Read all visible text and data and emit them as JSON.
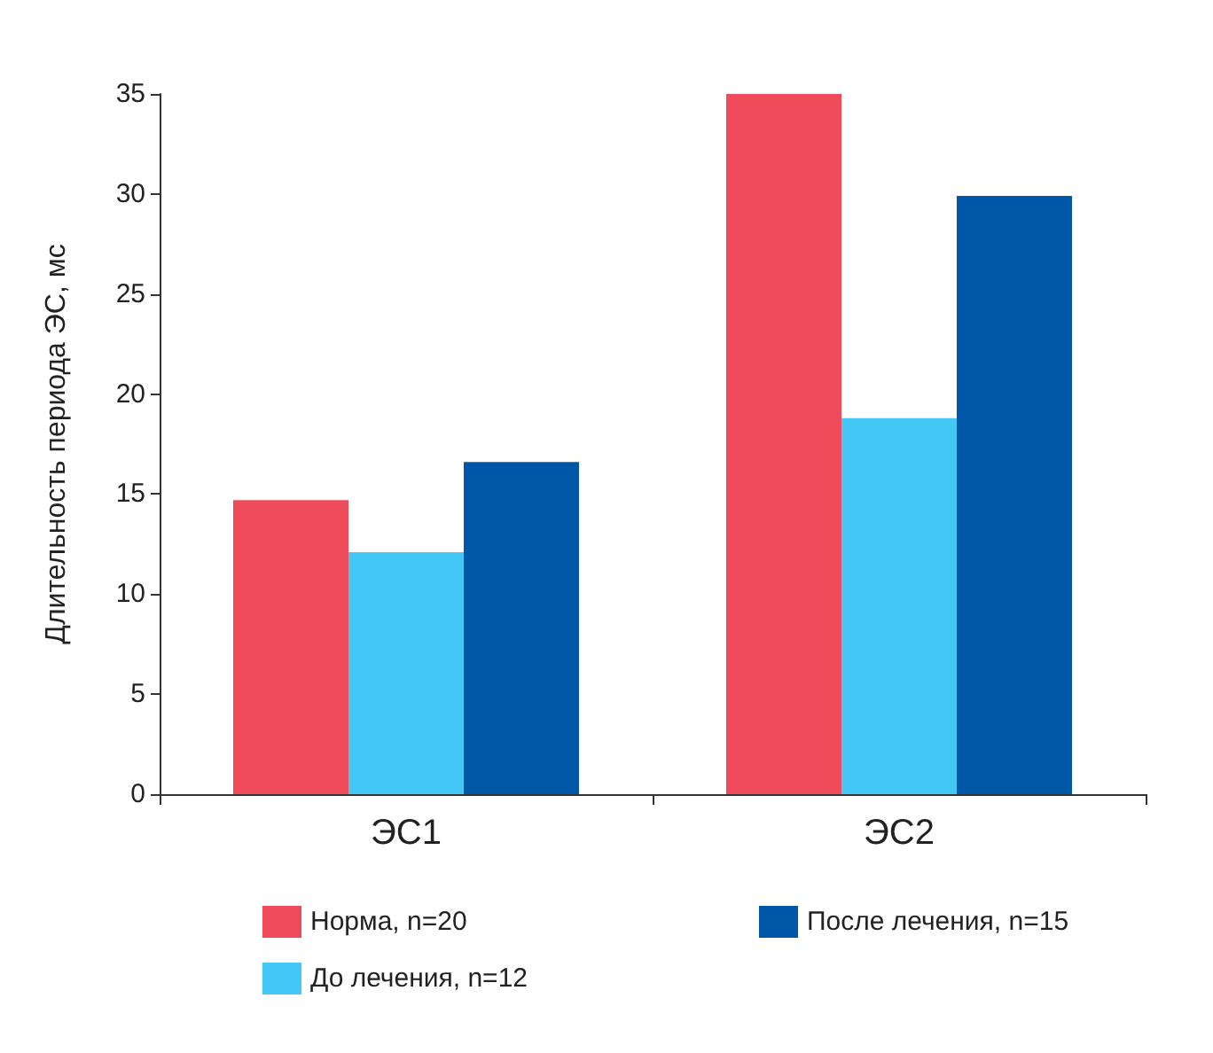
{
  "chart_data": {
    "type": "bar",
    "ylabel": "Длительность периода ЭС, мс",
    "categories": [
      "ЭС1",
      "ЭС2"
    ],
    "series": [
      {
        "name": "Норма, n=20",
        "color": "#ef4b5a",
        "values": [
          14.7,
          35.0
        ]
      },
      {
        "name": "До лечения, n=12",
        "color": "#44c8f5",
        "values": [
          12.1,
          18.8
        ]
      },
      {
        "name": "После лечения, n=15",
        "color": "#0057a8",
        "values": [
          16.6,
          29.9
        ]
      }
    ],
    "ylim": [
      0,
      35
    ],
    "yticks": [
      0,
      5,
      10,
      15,
      20,
      25,
      30,
      35
    ],
    "grid": false,
    "legend": "bottom"
  }
}
